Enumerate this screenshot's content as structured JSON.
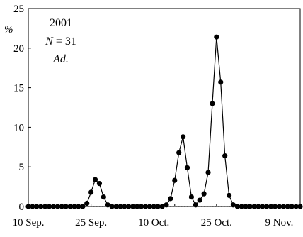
{
  "chart_data": {
    "type": "line",
    "title": "",
    "xlabel": "",
    "ylabel": "%",
    "ylim": [
      0,
      25
    ],
    "yticks": [
      0,
      5,
      10,
      15,
      20,
      25
    ],
    "x_tick_labels": [
      "10 Sep.",
      "25 Sep.",
      "10 Oct.",
      "25 Oct.",
      "9 Nov."
    ],
    "grid": false,
    "annotations": {
      "year": "2001",
      "n_label": "N",
      "n_sep": " = ",
      "n_value": "31",
      "stage": "Ad."
    },
    "series": [
      {
        "values": [
          0,
          0,
          0,
          0,
          0,
          0,
          0,
          0,
          0,
          0,
          0,
          0,
          0,
          0,
          0.4,
          1.8,
          3.4,
          2.9,
          1.2,
          0.2,
          0,
          0,
          0,
          0,
          0,
          0,
          0,
          0,
          0,
          0,
          0,
          0,
          0,
          0.2,
          1.0,
          3.3,
          6.8,
          8.8,
          4.9,
          1.2,
          0.2,
          0.8,
          1.6,
          4.3,
          13.0,
          21.4,
          15.7,
          6.4,
          1.4,
          0.2,
          0,
          0,
          0,
          0,
          0,
          0,
          0,
          0,
          0,
          0,
          0,
          0,
          0,
          0,
          0,
          0
        ]
      }
    ],
    "styles": {
      "line_color": "#000000",
      "marker_color": "#000000"
    }
  }
}
